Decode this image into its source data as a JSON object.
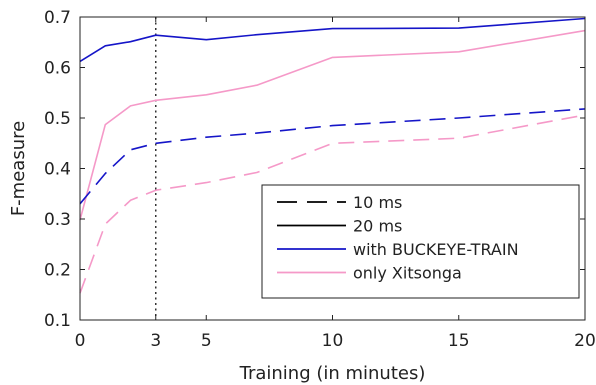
{
  "chart_data": {
    "type": "line",
    "xlabel": "Training (in minutes)",
    "ylabel": "F-measure",
    "xlim": [
      0,
      20
    ],
    "ylim": [
      0.1,
      0.7
    ],
    "xticks": [
      0,
      3,
      5,
      10,
      15,
      20
    ],
    "yticks": [
      0.1,
      0.2,
      0.3,
      0.4,
      0.5,
      0.6,
      0.7
    ],
    "grid": false,
    "legend_position": "bottom-right",
    "legend": [
      {
        "label": "10 ms",
        "style": "dashed",
        "color": "#000000"
      },
      {
        "label": "20 ms",
        "style": "solid",
        "color": "#000000"
      },
      {
        "label": "with BUCKEYE-TRAIN",
        "style": "solid",
        "color": "#1515c8"
      },
      {
        "label": "only Xitsonga",
        "style": "solid",
        "color": "#f599c8"
      }
    ],
    "vline": {
      "x": 3,
      "style": "dotted",
      "color": "#333333"
    },
    "series": [
      {
        "name": "with BUCKEYE-TRAIN (20 ms)",
        "color": "#1515c8",
        "dash": "solid",
        "x": [
          0,
          1,
          2,
          3,
          5,
          7,
          10,
          15,
          20
        ],
        "y": [
          0.612,
          0.643,
          0.651,
          0.664,
          0.655,
          0.665,
          0.677,
          0.678,
          0.697
        ]
      },
      {
        "name": "only Xitsonga (20 ms)",
        "color": "#f599c8",
        "dash": "solid",
        "x": [
          0,
          1,
          2,
          3,
          5,
          7,
          10,
          15,
          20
        ],
        "y": [
          0.298,
          0.487,
          0.524,
          0.535,
          0.546,
          0.565,
          0.62,
          0.631,
          0.673
        ]
      },
      {
        "name": "with BUCKEYE-TRAIN (10 ms)",
        "color": "#1515c8",
        "dash": "dashed",
        "x": [
          0,
          1,
          2,
          3,
          5,
          7,
          10,
          15,
          20
        ],
        "y": [
          0.33,
          0.39,
          0.437,
          0.45,
          0.462,
          0.47,
          0.485,
          0.5,
          0.518
        ]
      },
      {
        "name": "only Xitsonga (10 ms)",
        "color": "#f599c8",
        "dash": "dashed",
        "x": [
          0,
          1,
          2,
          3,
          5,
          7,
          10,
          15,
          20
        ],
        "y": [
          0.153,
          0.29,
          0.337,
          0.357,
          0.372,
          0.392,
          0.45,
          0.46,
          0.506
        ]
      }
    ]
  }
}
